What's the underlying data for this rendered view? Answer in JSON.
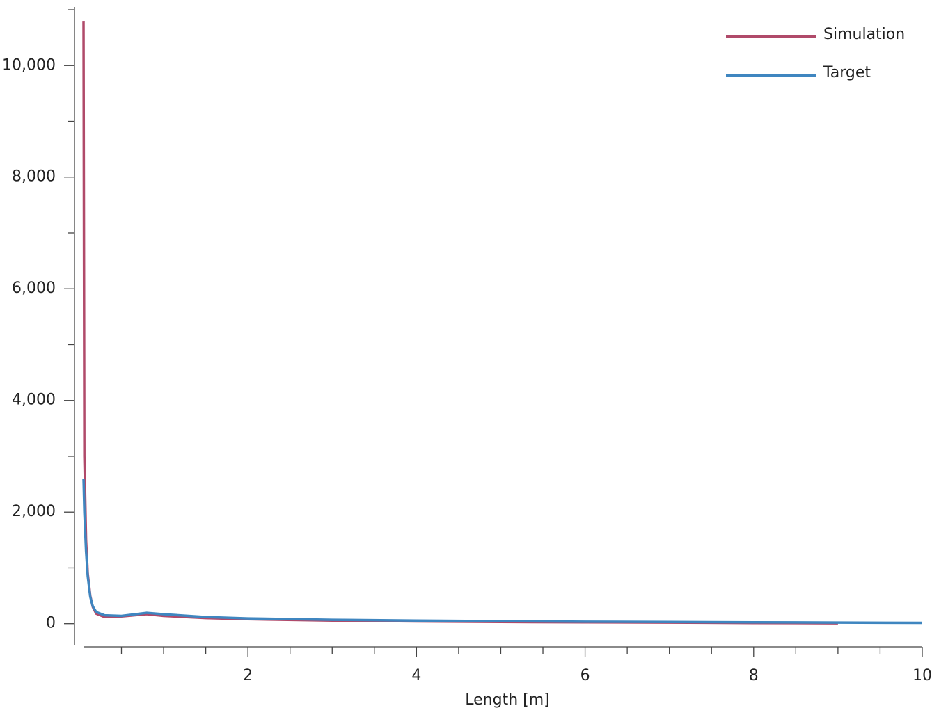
{
  "chart_data": {
    "type": "line",
    "x_label": "Length [m]",
    "xlim": [
      0.05,
      10
    ],
    "ylim": [
      -390,
      11050
    ],
    "xticks": [
      2,
      4,
      6,
      8,
      10
    ],
    "xminorticks": [
      0.5,
      1,
      1.5,
      2.5,
      3,
      3.5,
      4.5,
      5,
      5.5,
      6.5,
      7,
      7.5,
      8.5,
      9,
      9.5
    ],
    "yticks": [
      0,
      {
        "value": 2000,
        "label": "2,000"
      },
      {
        "value": 4000,
        "label": "4,000"
      },
      {
        "value": 6000,
        "label": "6,000"
      },
      {
        "value": 8000,
        "label": "8,000"
      },
      {
        "value": 10000,
        "label": "10,000"
      }
    ],
    "yminorticks": [
      1000,
      3000,
      5000,
      7000,
      9000,
      11000
    ],
    "legend": "top-right",
    "series": [
      {
        "name": "Simulation",
        "color": "#b04a6a",
        "x": [
          0.05,
          0.06,
          0.08,
          0.1,
          0.13,
          0.16,
          0.2,
          0.3,
          0.5,
          0.8,
          1.0,
          1.5,
          2,
          3,
          4,
          5,
          6,
          7,
          8,
          9
        ],
        "values": [
          10800,
          3000,
          1500,
          900,
          500,
          300,
          180,
          120,
          130,
          170,
          140,
          100,
          80,
          55,
          40,
          30,
          25,
          20,
          12,
          8
        ]
      },
      {
        "name": "Target",
        "color": "#3f86c0",
        "x": [
          0.05,
          0.06,
          0.08,
          0.1,
          0.13,
          0.16,
          0.2,
          0.3,
          0.5,
          0.8,
          1.0,
          1.5,
          2,
          3,
          4,
          5,
          6,
          7,
          8,
          9,
          10
        ],
        "values": [
          2600,
          2000,
          1300,
          850,
          480,
          310,
          210,
          150,
          140,
          195,
          170,
          120,
          95,
          70,
          55,
          45,
          35,
          30,
          25,
          20,
          15
        ]
      }
    ]
  }
}
